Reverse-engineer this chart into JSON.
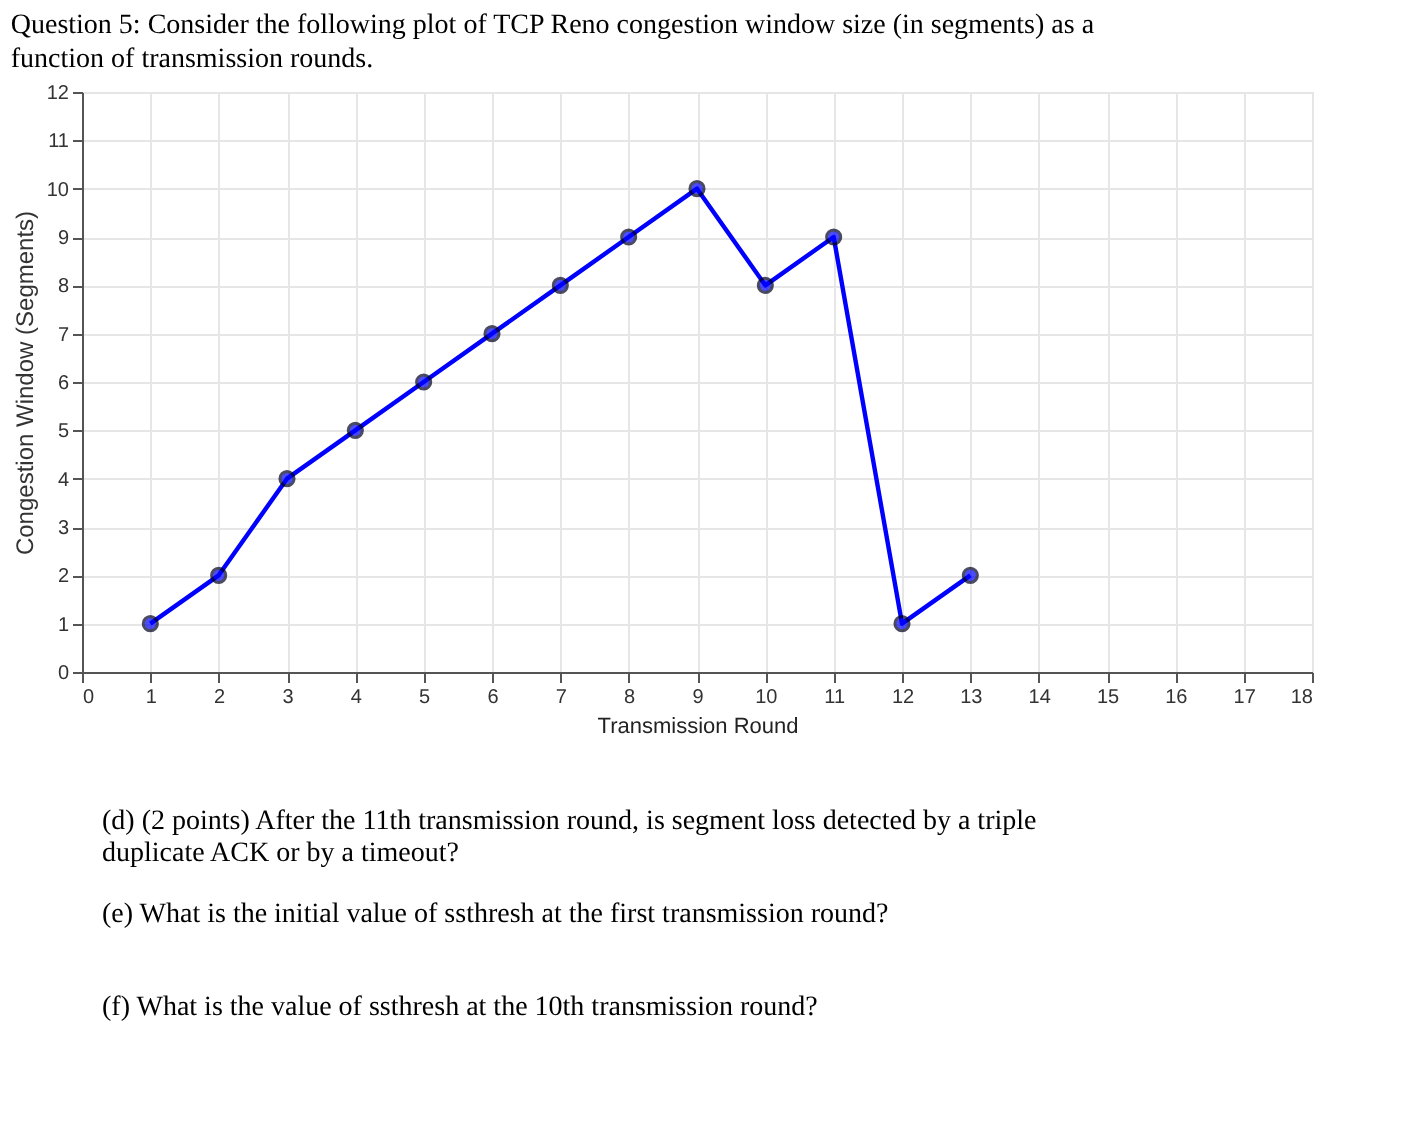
{
  "chart_data": {
    "type": "line",
    "title": "Question 5: Consider the following plot of TCP Reno congestion window size (in segments) as a function of transmission rounds.",
    "xlabel": "Transmission Round",
    "ylabel": "Congestion Window (Segments)",
    "x": [
      1,
      2,
      3,
      4,
      5,
      6,
      7,
      8,
      9,
      10,
      11,
      12,
      13
    ],
    "series": [
      {
        "color": "#0000ff",
        "values": [
          1,
          2,
          4,
          5,
          6,
          7,
          8,
          9,
          10,
          8,
          9,
          1,
          2
        ]
      }
    ],
    "xlim": [
      0,
      18
    ],
    "xticks": [
      0,
      1,
      2,
      3,
      4,
      5,
      6,
      7,
      8,
      9,
      10,
      11,
      12,
      13,
      14,
      15,
      16,
      17,
      18
    ],
    "ylim": [
      0,
      12
    ],
    "yticks": [
      0,
      1,
      2,
      3,
      4,
      5,
      6,
      7,
      8,
      9,
      10,
      11,
      12
    ],
    "grid": true,
    "marker": "circle",
    "line_style": "solid",
    "annotations": [
      "(d) (2 points) After the 11th transmission round, is segment loss detected by a triple duplicate ACK or by a timeout?",
      "(e) What is the initial value of ssthresh at the first transmission round?",
      "(f) What is the value of ssthresh at the 10th transmission round?"
    ]
  }
}
